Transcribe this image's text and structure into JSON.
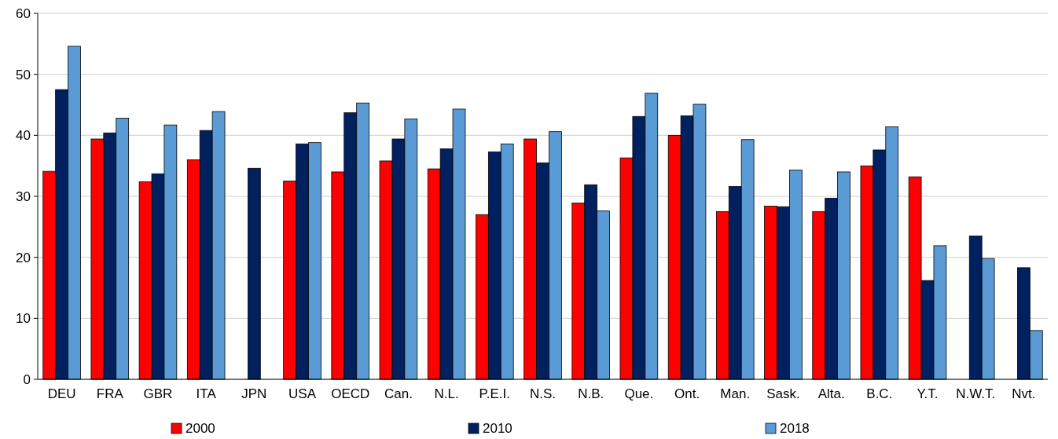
{
  "chart_data": {
    "type": "bar",
    "categories": [
      "DEU",
      "FRA",
      "GBR",
      "ITA",
      "JPN",
      "USA",
      "OECD",
      "Can.",
      "N.L.",
      "P.E.I.",
      "N.S.",
      "N.B.",
      "Que.",
      "Ont.",
      "Man.",
      "Sask.",
      "Alta.",
      "B.C.",
      "Y.T.",
      "N.W.T.",
      "Nvt."
    ],
    "series": [
      {
        "name": "2000",
        "color": "#ff0000",
        "values": [
          34.1,
          39.4,
          32.4,
          36.0,
          null,
          32.5,
          34.0,
          35.8,
          34.5,
          27.0,
          39.4,
          28.9,
          36.3,
          40.0,
          27.5,
          28.4,
          27.5,
          35.0,
          33.2,
          null,
          null
        ]
      },
      {
        "name": "2010",
        "color": "#002060",
        "values": [
          47.5,
          40.4,
          33.7,
          40.8,
          34.6,
          38.6,
          43.7,
          39.4,
          37.8,
          37.3,
          35.5,
          31.9,
          43.1,
          43.2,
          31.6,
          28.3,
          29.7,
          37.6,
          16.2,
          23.5,
          18.3
        ]
      },
      {
        "name": "2018",
        "color": "#5b9bd5",
        "values": [
          54.6,
          42.8,
          41.7,
          43.9,
          null,
          38.8,
          45.3,
          42.7,
          44.3,
          38.6,
          40.6,
          27.6,
          46.9,
          45.1,
          39.3,
          34.3,
          34.0,
          41.4,
          21.9,
          19.8,
          8.0
        ]
      }
    ],
    "ylim": [
      0,
      60
    ],
    "yticks": [
      0,
      10,
      20,
      30,
      40,
      50,
      60
    ],
    "grid": "y",
    "legend": "bottom"
  }
}
